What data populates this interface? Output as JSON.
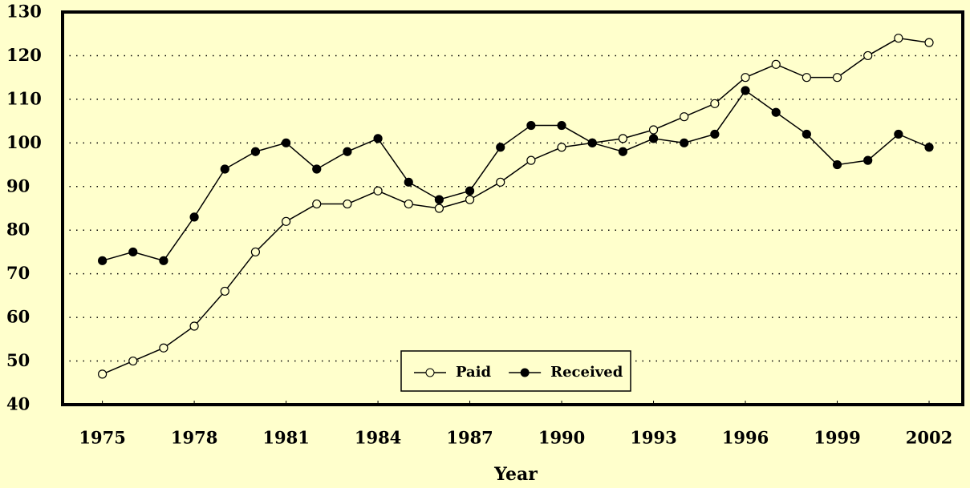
{
  "chart_data": {
    "type": "line",
    "x_label": "Year",
    "x": [
      1975,
      1976,
      1977,
      1978,
      1979,
      1980,
      1981,
      1982,
      1983,
      1984,
      1985,
      1986,
      1987,
      1988,
      1989,
      1990,
      1991,
      1992,
      1993,
      1994,
      1995,
      1996,
      1997,
      1998,
      1999,
      2000,
      2001,
      2002
    ],
    "series": [
      {
        "name": "Paid",
        "color": "#000000",
        "marker": "open",
        "values": [
          47,
          50,
          53,
          58,
          66,
          75,
          82,
          86,
          86,
          89,
          86,
          85,
          87,
          91,
          96,
          99,
          100,
          101,
          103,
          106,
          109,
          115,
          118,
          115,
          115,
          120,
          124,
          123
        ]
      },
      {
        "name": "Received",
        "color": "#000000",
        "marker": "filled",
        "values": [
          73,
          75,
          73,
          83,
          94,
          98,
          100,
          94,
          98,
          101,
          91,
          87,
          89,
          99,
          104,
          104,
          100,
          98,
          101,
          100,
          102,
          112,
          107,
          102,
          95,
          96,
          102,
          99
        ]
      }
    ],
    "xlim": [
      1973.7,
      2003.1
    ],
    "xticks": [
      1975,
      1978,
      1981,
      1984,
      1987,
      1990,
      1993,
      1996,
      1999,
      2002
    ],
    "ylim": [
      40,
      130
    ],
    "yticks": [
      40,
      50,
      60,
      70,
      80,
      90,
      100,
      110,
      120,
      130
    ],
    "grid": true,
    "legend": "lower center"
  }
}
